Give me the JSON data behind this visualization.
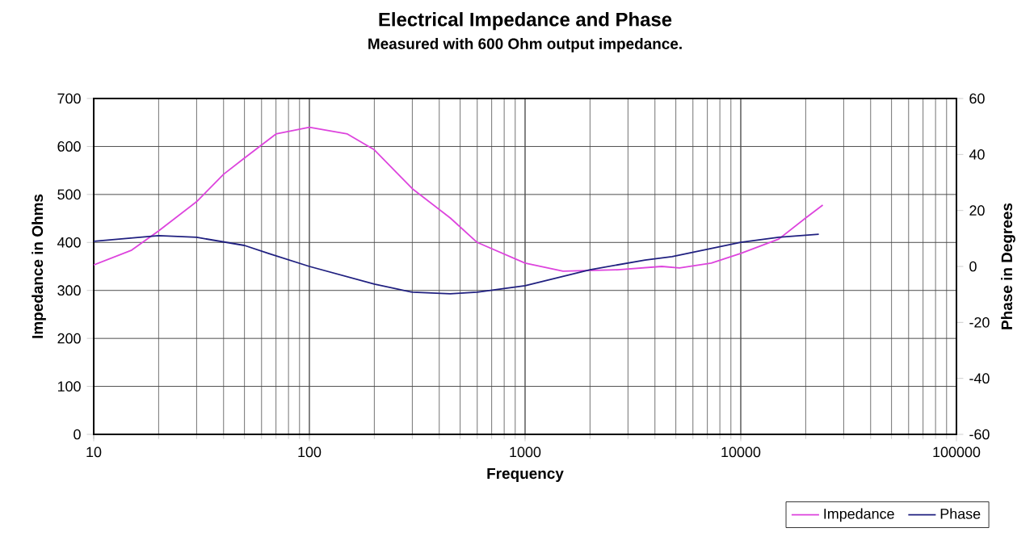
{
  "chart_data": {
    "type": "line",
    "title": "Electrical Impedance and Phase",
    "subtitle": "Measured with 600 Ohm output impedance.",
    "xlabel": "Frequency",
    "ylabel": "Impedance in Ohms",
    "y2label": "Phase in Degrees",
    "log": "x",
    "grid": true,
    "legend": "bottom right",
    "marker": "none",
    "line_style": "solid",
    "xlim": [
      10,
      100000
    ],
    "xticks": [
      10,
      100,
      1000,
      10000,
      100000
    ],
    "ylim": [
      0,
      700
    ],
    "yticks": [
      0,
      100,
      200,
      300,
      400,
      500,
      600,
      700
    ],
    "y2lim": [
      -60,
      60
    ],
    "y2ticks": [
      -60,
      -40,
      -20,
      0,
      20,
      40,
      60
    ],
    "series": [
      {
        "name": "Impedance",
        "color": "#dd44dd",
        "x": [
          10,
          15,
          20,
          30,
          40,
          50,
          70,
          100,
          150,
          200,
          300,
          450,
          600,
          1000,
          1500,
          2700,
          4300,
          5200,
          7300,
          10000,
          15000,
          20000,
          24000
        ],
        "values": [
          353,
          384,
          424,
          485,
          542,
          576,
          626,
          640,
          626,
          593,
          512,
          451,
          400,
          357,
          340,
          343,
          350,
          347,
          357,
          377,
          407,
          451,
          478
        ]
      },
      {
        "name": "Phase",
        "color": "#202080",
        "axis": "y2",
        "x": [
          10,
          20,
          30,
          50,
          65,
          100,
          200,
          300,
          450,
          600,
          1000,
          2000,
          3600,
          4800,
          10000,
          15000,
          23000
        ],
        "values": [
          9,
          11,
          10.4,
          7.5,
          4.6,
          0,
          -6.3,
          -9.2,
          -9.8,
          -9.2,
          -6.9,
          -1.2,
          2.3,
          3.5,
          8.6,
          10.4,
          11.5
        ]
      }
    ]
  }
}
